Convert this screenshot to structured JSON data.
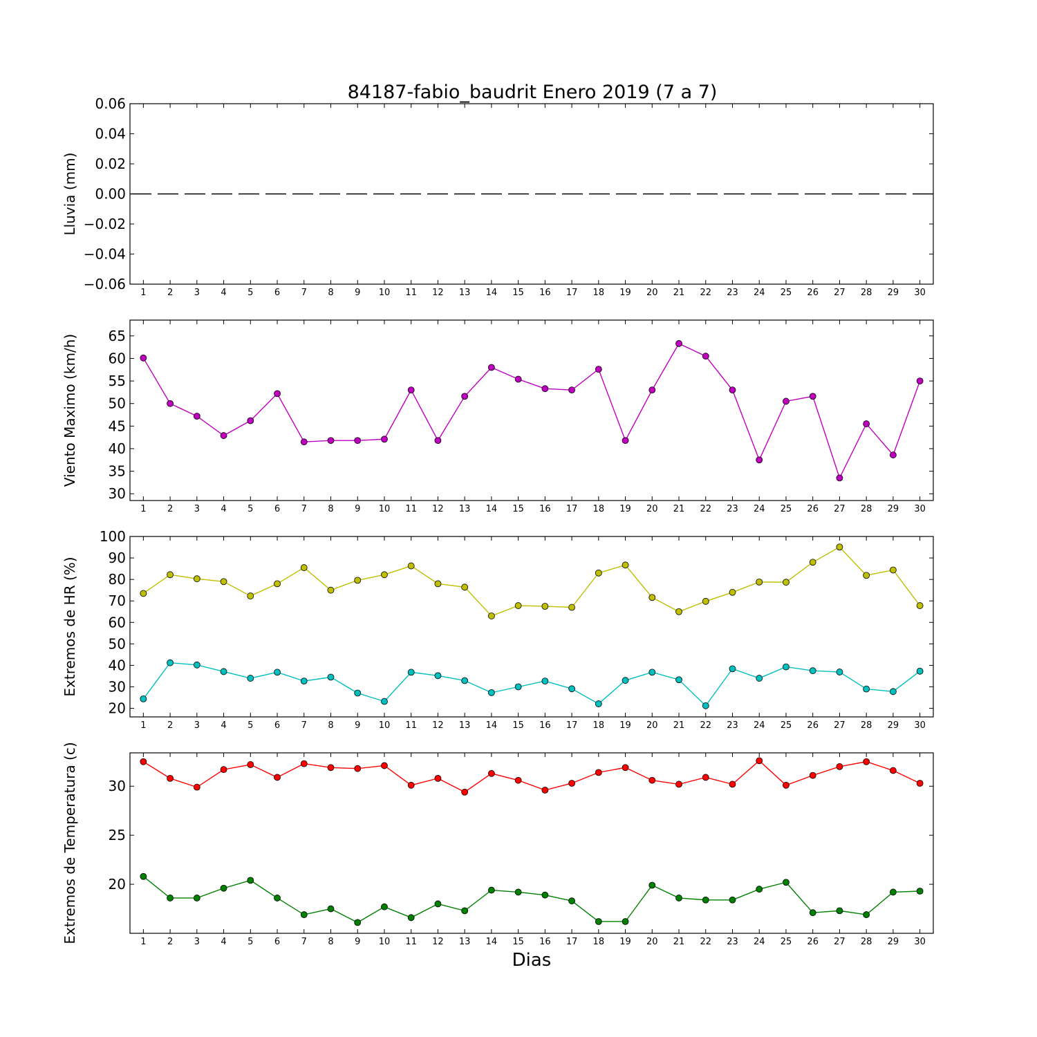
{
  "title": "84187-fabio_baudrit Enero 2019  (7 a 7)",
  "xlabel": "Dias",
  "chart_data": [
    {
      "type": "line",
      "ylabel": "Lluvia (mm)",
      "ylim": [
        -0.06,
        0.06
      ],
      "yticks": [
        0.06,
        0.04,
        0.02,
        0.0,
        -0.02,
        -0.04,
        -0.06
      ],
      "ytick_labels": [
        "0.06",
        "0.04",
        "0.02",
        "0.00",
        "−0.02",
        "−0.04",
        "−0.06"
      ],
      "x": [
        1,
        2,
        3,
        4,
        5,
        6,
        7,
        8,
        9,
        10,
        11,
        12,
        13,
        14,
        15,
        16,
        17,
        18,
        19,
        20,
        21,
        22,
        23,
        24,
        25,
        26,
        27,
        28,
        29,
        30
      ],
      "xlim": [
        0.5,
        30.5
      ],
      "series": [
        {
          "values": [
            0,
            0,
            0,
            0,
            0,
            0,
            0,
            0,
            0,
            0,
            0,
            0,
            0,
            0,
            0,
            0,
            0,
            0,
            0,
            0,
            0,
            0,
            0,
            0,
            0,
            0,
            0,
            0,
            0,
            0
          ],
          "color": "#000000",
          "style": "dashed",
          "markers": false
        }
      ]
    },
    {
      "type": "line",
      "ylabel": "Viento Maximo (km/h)",
      "ylim": [
        28.5,
        68.5
      ],
      "yticks": [
        65,
        60,
        55,
        50,
        45,
        40,
        35,
        30
      ],
      "ytick_labels": [
        "65",
        "60",
        "55",
        "50",
        "45",
        "40",
        "35",
        "30"
      ],
      "x": [
        1,
        2,
        3,
        4,
        5,
        6,
        7,
        8,
        9,
        10,
        11,
        12,
        13,
        14,
        15,
        16,
        17,
        18,
        19,
        20,
        21,
        22,
        23,
        24,
        25,
        26,
        27,
        28,
        29,
        30
      ],
      "xlim": [
        0.5,
        30.5
      ],
      "series": [
        {
          "values": [
            60.1,
            50.0,
            47.2,
            42.9,
            46.2,
            52.2,
            41.5,
            41.8,
            41.8,
            42.1,
            53.0,
            41.8,
            51.6,
            58.0,
            55.4,
            53.3,
            53.0,
            57.6,
            41.8,
            53.0,
            63.3,
            60.5,
            53.0,
            37.5,
            50.5,
            51.6,
            33.5,
            45.5,
            38.6,
            55.0
          ],
          "color": "#bf00bf",
          "style": "solid",
          "markers": true
        }
      ]
    },
    {
      "type": "line",
      "ylabel": "Extremos de HR (%)",
      "ylim": [
        16,
        100
      ],
      "yticks": [
        100,
        90,
        80,
        70,
        60,
        50,
        40,
        30,
        20
      ],
      "ytick_labels": [
        "100",
        "90",
        "80",
        "70",
        "60",
        "50",
        "40",
        "30",
        "20"
      ],
      "x": [
        1,
        2,
        3,
        4,
        5,
        6,
        7,
        8,
        9,
        10,
        11,
        12,
        13,
        14,
        15,
        16,
        17,
        18,
        19,
        20,
        21,
        22,
        23,
        24,
        25,
        26,
        27,
        28,
        29,
        30
      ],
      "xlim": [
        0.5,
        30.5
      ],
      "series": [
        {
          "values": [
            73.5,
            82.2,
            80.3,
            79.0,
            72.3,
            78.0,
            85.5,
            75.0,
            79.6,
            82.2,
            86.3,
            78.0,
            76.4,
            63.0,
            67.8,
            67.5,
            67.0,
            83.0,
            86.7,
            71.6,
            65.0,
            69.8,
            74.0,
            78.8,
            78.7,
            88.0,
            95.1,
            81.9,
            84.4,
            67.8
          ],
          "color": "#bfbf00",
          "style": "solid",
          "markers": true
        },
        {
          "values": [
            24.4,
            41.2,
            40.2,
            37.1,
            34.0,
            36.8,
            32.7,
            34.5,
            27.1,
            23.2,
            36.8,
            35.2,
            32.9,
            27.3,
            30.0,
            32.7,
            29.1,
            22.1,
            33.0,
            36.8,
            33.3,
            21.2,
            38.4,
            34.0,
            39.3,
            37.5,
            36.9,
            29.0,
            27.8,
            37.3
          ],
          "color": "#00bfbf",
          "style": "solid",
          "markers": true
        }
      ]
    },
    {
      "type": "line",
      "ylabel": "Extremos de Temperatura (c)",
      "ylim": [
        15,
        33.4
      ],
      "yticks": [
        30,
        25,
        20
      ],
      "ytick_labels": [
        "30",
        "25",
        "20"
      ],
      "x": [
        1,
        2,
        3,
        4,
        5,
        6,
        7,
        8,
        9,
        10,
        11,
        12,
        13,
        14,
        15,
        16,
        17,
        18,
        19,
        20,
        21,
        22,
        23,
        24,
        25,
        26,
        27,
        28,
        29,
        30
      ],
      "xlim": [
        0.5,
        30.5
      ],
      "series": [
        {
          "values": [
            32.5,
            30.8,
            29.9,
            31.7,
            32.2,
            30.9,
            32.3,
            31.9,
            31.8,
            32.1,
            30.1,
            30.8,
            29.4,
            31.3,
            30.6,
            29.6,
            30.3,
            31.4,
            31.9,
            30.6,
            30.2,
            30.9,
            30.2,
            32.6,
            30.1,
            31.1,
            32.0,
            32.5,
            31.6,
            30.3
          ],
          "color": "#ff0000",
          "style": "solid",
          "markers": true
        },
        {
          "values": [
            20.8,
            18.6,
            18.6,
            19.6,
            20.4,
            18.6,
            16.9,
            17.5,
            16.1,
            17.7,
            16.6,
            18.0,
            17.3,
            19.4,
            19.2,
            18.9,
            18.3,
            16.2,
            16.2,
            19.9,
            18.6,
            18.4,
            18.4,
            19.5,
            20.2,
            17.1,
            17.3,
            16.9,
            19.2,
            19.3
          ],
          "color": "#008000",
          "style": "solid",
          "markers": true
        }
      ]
    }
  ]
}
